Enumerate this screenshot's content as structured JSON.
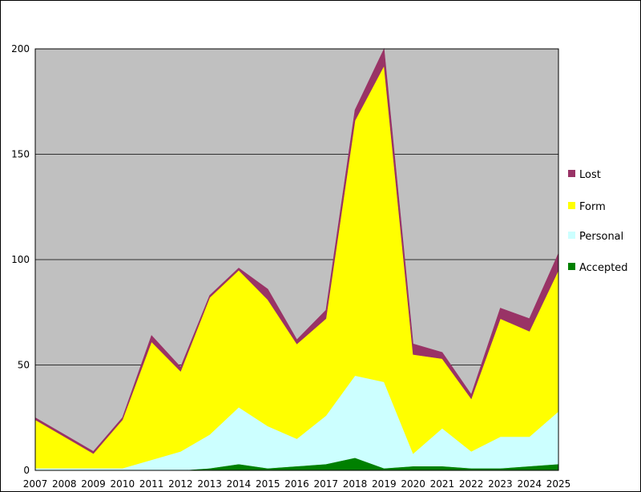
{
  "chart_data": {
    "type": "area",
    "stacked": true,
    "title": "",
    "xlabel": "",
    "ylabel": "",
    "ylim": [
      0,
      200
    ],
    "yticks": [
      "0",
      "50",
      "100",
      "150",
      "200"
    ],
    "grid": true,
    "legend_position": "right",
    "categories": [
      "2007",
      "2008",
      "2009",
      "2010",
      "2011",
      "2012",
      "2013",
      "2014",
      "2015",
      "2016",
      "2017",
      "2018",
      "2019",
      "2020",
      "2021",
      "2022",
      "2023",
      "2024",
      "2025"
    ],
    "series": [
      {
        "name": "Accepted",
        "color": "#008000",
        "values": [
          0,
          0,
          0,
          0,
          0,
          0,
          1,
          3,
          1,
          2,
          3,
          6,
          1,
          2,
          2,
          1,
          1,
          2,
          3
        ]
      },
      {
        "name": "Personal",
        "color": "#ccffff",
        "values": [
          1,
          1,
          1,
          1,
          5,
          9,
          16,
          27,
          20,
          13,
          23,
          39,
          41,
          6,
          18,
          8,
          15,
          14,
          25
        ]
      },
      {
        "name": "Form",
        "color": "#ffff00",
        "values": [
          23,
          15,
          7,
          23,
          56,
          38,
          65,
          65,
          60,
          45,
          46,
          121,
          150,
          47,
          33,
          25,
          56,
          50,
          67
        ]
      },
      {
        "name": "Lost",
        "color": "#993366",
        "values": [
          1,
          1,
          1,
          1,
          3,
          2,
          1,
          1,
          5,
          2,
          4,
          5,
          8,
          5,
          3,
          2,
          5,
          6,
          8
        ]
      }
    ],
    "legend": [
      "Lost",
      "Form",
      "Personal",
      "Accepted"
    ],
    "plot_background": "#c0c0c0"
  }
}
